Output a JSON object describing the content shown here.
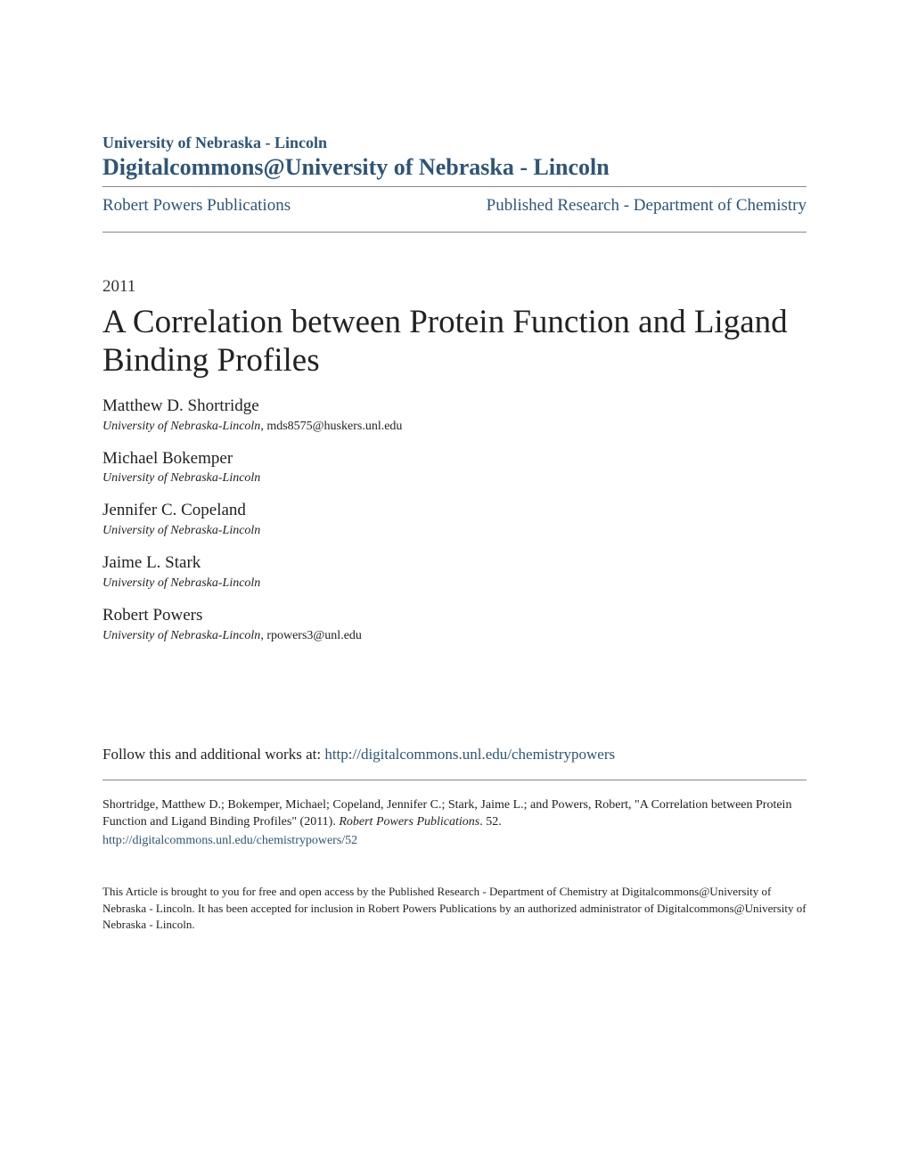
{
  "header": {
    "institution": "University of Nebraska - Lincoln",
    "repository": "Digitalcommons@University of Nebraska - Lincoln"
  },
  "nav": {
    "left": "Robert Powers Publications",
    "right": "Published Research - Department of Chemistry"
  },
  "year": "2011",
  "title": "A Correlation between Protein Function and Ligand Binding Profiles",
  "authors": [
    {
      "name": "Matthew D. Shortridge",
      "affiliation": "University of Nebraska-Lincoln",
      "email": ", mds8575@huskers.unl.edu"
    },
    {
      "name": "Michael Bokemper",
      "affiliation": "University of Nebraska-Lincoln",
      "email": ""
    },
    {
      "name": "Jennifer C. Copeland",
      "affiliation": "University of Nebraska-Lincoln",
      "email": ""
    },
    {
      "name": "Jaime L. Stark",
      "affiliation": "University of Nebraska-Lincoln",
      "email": ""
    },
    {
      "name": "Robert Powers",
      "affiliation": "University of Nebraska-Lincoln",
      "email": ", rpowers3@unl.edu"
    }
  ],
  "follow": {
    "prefix": "Follow this and additional works at: ",
    "link": "http://digitalcommons.unl.edu/chemistrypowers"
  },
  "citation": {
    "text_before_italic": "Shortridge, Matthew D.; Bokemper, Michael; Copeland, Jennifer C.; Stark, Jaime L.; and Powers, Robert, \"A Correlation between Protein Function and Ligand Binding Profiles\" (2011). ",
    "italic": "Robert Powers Publications",
    "text_after_italic": ". 52.",
    "link": "http://digitalcommons.unl.edu/chemistrypowers/52"
  },
  "disclaimer": "This Article is brought to you for free and open access by the Published Research - Department of Chemistry at Digitalcommons@University of Nebraska - Lincoln. It has been accepted for inclusion in Robert Powers Publications by an authorized administrator of Digitalcommons@University of Nebraska - Lincoln.",
  "colors": {
    "link_color": "#2d5578",
    "text_color": "#222222",
    "border_color": "#888888",
    "background": "#ffffff"
  }
}
